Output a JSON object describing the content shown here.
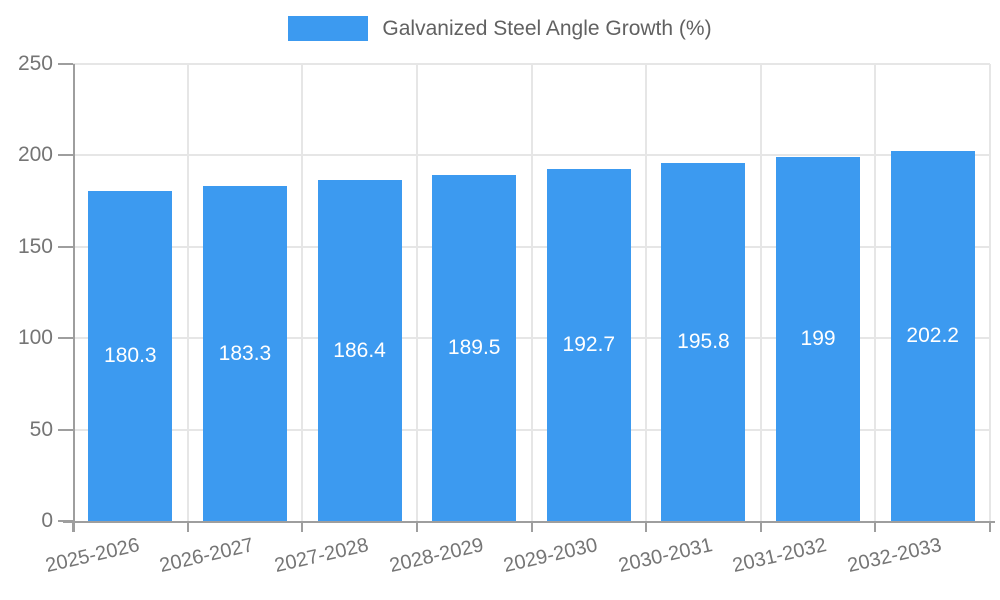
{
  "chart_data": {
    "type": "bar",
    "title": "",
    "legend_label": "Galvanized Steel Angle Growth (%)",
    "legend_position": "top-center",
    "categories": [
      "2025-2026",
      "2026-2027",
      "2027-2028",
      "2028-2029",
      "2029-2030",
      "2030-2031",
      "2031-2032",
      "2032-2033"
    ],
    "values": [
      180.3,
      183.3,
      186.4,
      189.5,
      192.7,
      195.8,
      199,
      202.2
    ],
    "bar_labels": [
      "180.3",
      "183.3",
      "186.4",
      "189.5",
      "192.7",
      "195.8",
      "199",
      "202.2"
    ],
    "xlabel": "",
    "ylabel": "",
    "ylim": [
      0,
      250
    ],
    "yticks": [
      0,
      50,
      100,
      150,
      200,
      250
    ],
    "grid": "horizontal and vertical light-gray gridlines",
    "x_tick_rotation_deg": -13,
    "colors": {
      "bar": "#3C9AF0",
      "bar_label": "#ffffff",
      "axis": "#9e9e9e",
      "grid": "#e6e6e6",
      "tick_label": "#757575",
      "legend_text": "#616161"
    }
  }
}
